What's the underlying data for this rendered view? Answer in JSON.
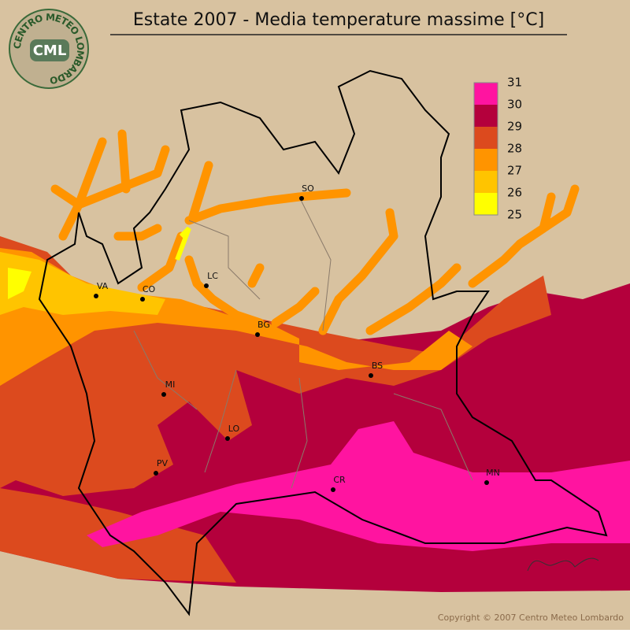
{
  "title": "Estate 2007 - Media temperature massime [°C]",
  "logo": {
    "ring": "CENTRO METEO LOMBARDO",
    "short": "CML"
  },
  "legend": {
    "labels": [
      31,
      30,
      29,
      28,
      27,
      26,
      25
    ],
    "colors": [
      "#ff14a0",
      "#b4003c",
      "#dc4a1e",
      "#ff9400",
      "#ffc400",
      "#ffff00"
    ]
  },
  "cities": [
    "SO",
    "LC",
    "VA",
    "CO",
    "BG",
    "MI",
    "BS",
    "LO",
    "PV",
    "CR",
    "MN"
  ],
  "copyright": "Copyright © 2007 Centro Meteo Lombardo"
}
